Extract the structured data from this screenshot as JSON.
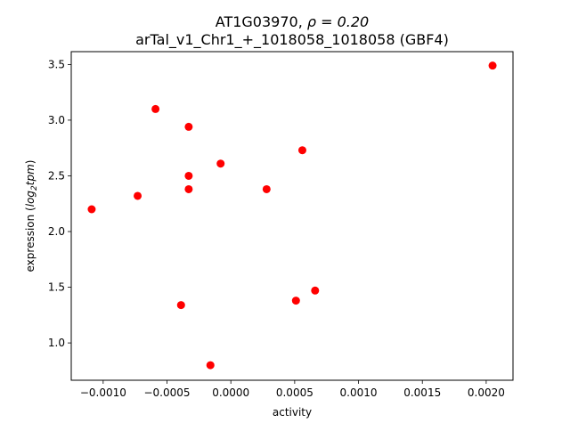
{
  "chart_data": {
    "type": "scatter",
    "title_line1_prefix": "AT1G03970, ",
    "title_line1_rho": "ρ = 0.20",
    "title_line2": "arTal_v1_Chr1_+_1018058_1018058 (GBF4)",
    "xlabel": "activity",
    "ylabel_prefix": "expression (",
    "ylabel_math_main": "log",
    "ylabel_math_sub": "2",
    "ylabel_math_end": "tpm",
    "ylabel_suffix": ")",
    "xlim": [
      -0.00125,
      0.00221
    ],
    "ylim": [
      0.665,
      3.615
    ],
    "x_ticks": [
      -0.001,
      -0.0005,
      0.0,
      0.0005,
      0.001,
      0.0015,
      0.002
    ],
    "x_tick_labels": [
      "−0.0010",
      "−0.0005",
      "0.0000",
      "0.0005",
      "0.0010",
      "0.0015",
      "0.0020"
    ],
    "y_ticks": [
      1.0,
      1.5,
      2.0,
      2.5,
      3.0,
      3.5
    ],
    "y_tick_labels": [
      "1.0",
      "1.5",
      "2.0",
      "2.5",
      "3.0",
      "3.5"
    ],
    "grid": false,
    "point_color": "#ff0000",
    "points": [
      {
        "x": -0.00109,
        "y": 2.2
      },
      {
        "x": -0.00073,
        "y": 2.32
      },
      {
        "x": -0.00059,
        "y": 3.1
      },
      {
        "x": -0.00039,
        "y": 1.34
      },
      {
        "x": -0.00033,
        "y": 2.94
      },
      {
        "x": -0.00033,
        "y": 2.5
      },
      {
        "x": -0.00033,
        "y": 2.38
      },
      {
        "x": -0.00016,
        "y": 0.8
      },
      {
        "x": -8e-05,
        "y": 2.61
      },
      {
        "x": 0.00028,
        "y": 2.38
      },
      {
        "x": 0.00051,
        "y": 1.38
      },
      {
        "x": 0.00056,
        "y": 2.73
      },
      {
        "x": 0.00066,
        "y": 1.47
      },
      {
        "x": 0.00205,
        "y": 3.49
      }
    ]
  }
}
